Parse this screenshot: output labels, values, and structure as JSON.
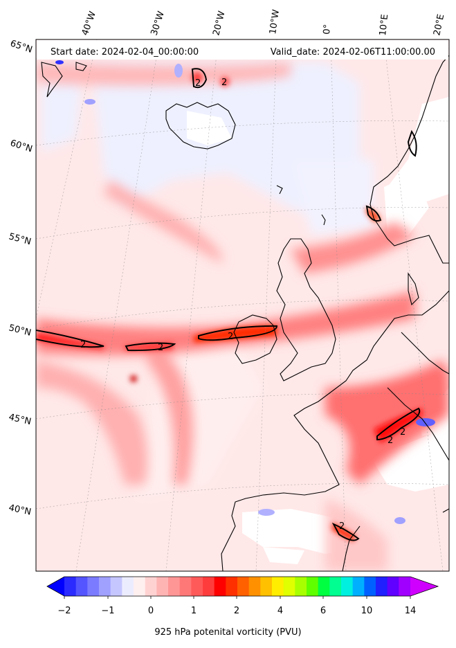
{
  "header": {
    "start_date": "Start date: 2024-02-04_00:00:00",
    "valid_date": "Valid_date: 2024-02-06T11:00:00.00"
  },
  "longitude_labels": [
    "40°W",
    "30°W",
    "20°W",
    "10°W",
    "0°",
    "10°E",
    "20°E"
  ],
  "latitude_labels": [
    "65°N",
    "60°N",
    "55°N",
    "50°N",
    "45°N",
    "40°N"
  ],
  "contour_labels": [
    "2",
    "2",
    "2",
    "2",
    "2",
    "2",
    "2",
    "2"
  ],
  "colorbar": {
    "title": "925 hPa potenital vorticity (PVU)",
    "ticks": [
      "−2",
      "−1",
      "0",
      "1",
      "2",
      "4",
      "6",
      "10",
      "14"
    ],
    "colors": [
      "#0000ff",
      "#2b2bff",
      "#5555ff",
      "#7b7bff",
      "#a0a0ff",
      "#c6c6ff",
      "#ececff",
      "#fff0f0",
      "#ffd2d2",
      "#ffb4b4",
      "#ff9696",
      "#ff7878",
      "#ff5a5a",
      "#ff3c3c",
      "#ff0000",
      "#ff3000",
      "#ff6000",
      "#ff9000",
      "#ffc000",
      "#ffee00",
      "#e0ff00",
      "#a8ff00",
      "#60ff00",
      "#00ff40",
      "#00ff90",
      "#00f0e0",
      "#00b0ff",
      "#0060ff",
      "#2020ff",
      "#6000ff",
      "#a000ff",
      "#d000ff"
    ]
  }
}
